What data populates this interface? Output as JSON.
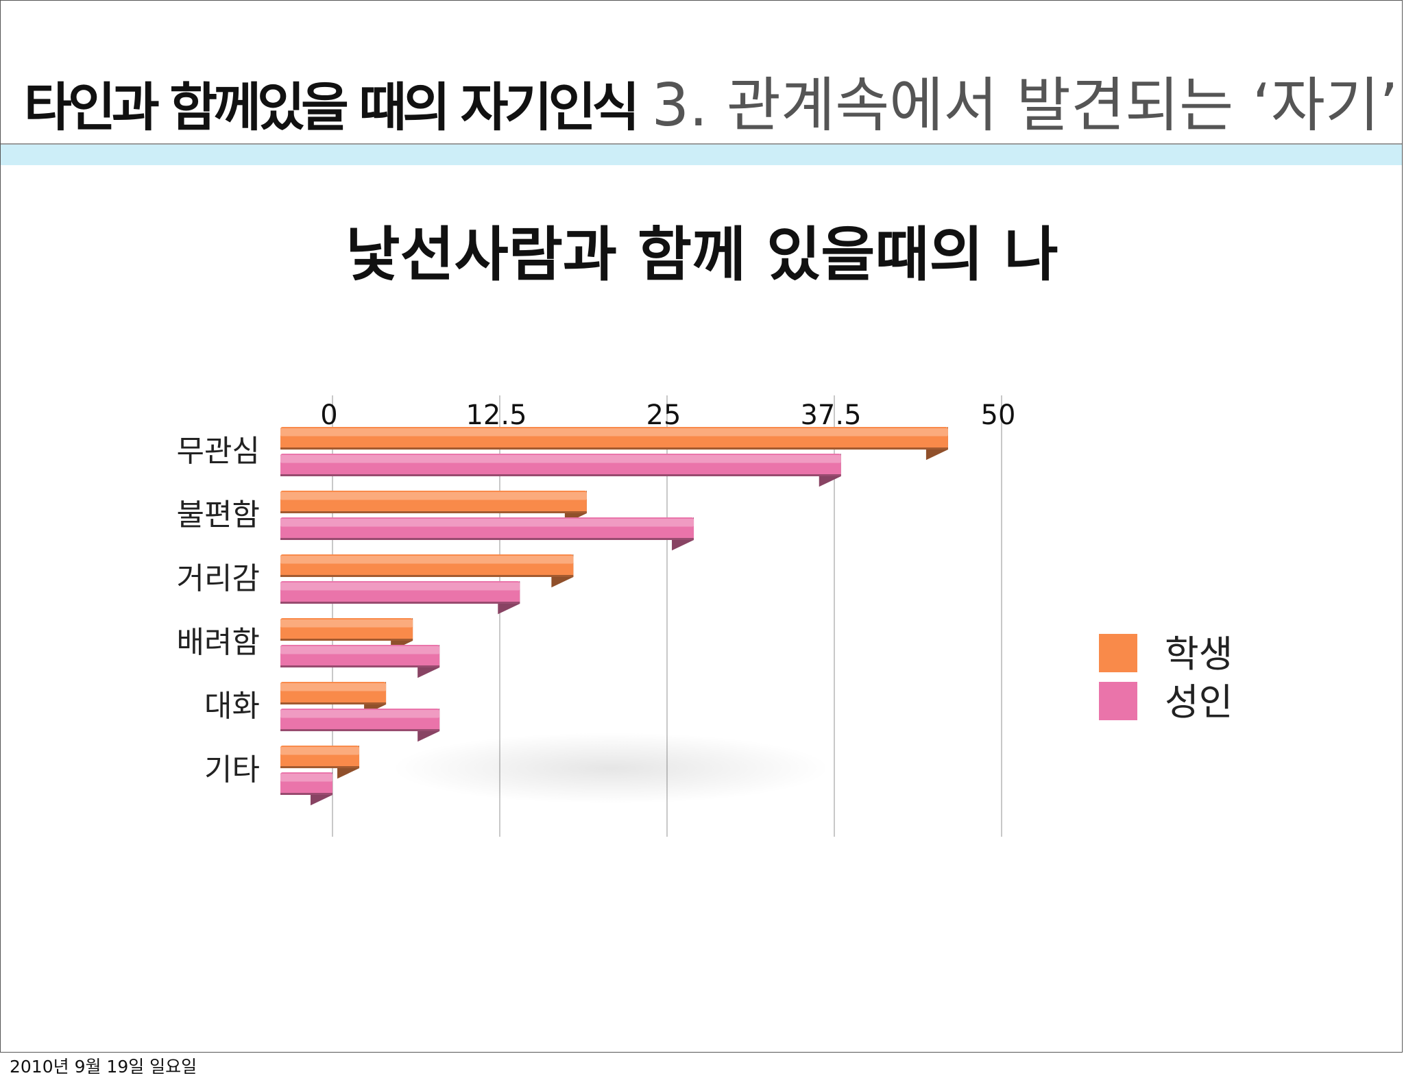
{
  "header": {
    "title_left": "타인과 함께있을 때의 자기인식",
    "title_right": "3. 관계속에서 발견되는 ‘자기’"
  },
  "footer": {
    "date": "2010년 9월 19일 일요일"
  },
  "colors": {
    "student": "#f98a4a",
    "adult": "#ea74aa",
    "header_band": "#cdeef8"
  },
  "chart_data": {
    "type": "bar",
    "orientation": "horizontal",
    "title": "낯선사람과 함께 있을때의 나",
    "categories": [
      "무관심",
      "불편함",
      "거리감",
      "배려함",
      "대화",
      "기타"
    ],
    "series": [
      {
        "name": "학생",
        "color": "#f98a4a",
        "values": [
          46,
          19,
          18,
          6,
          4,
          2
        ]
      },
      {
        "name": "성인",
        "color": "#ea74aa",
        "values": [
          38,
          27,
          14,
          8,
          8,
          0
        ]
      }
    ],
    "x_ticks": [
      "0",
      "12.5",
      "25",
      "37.5",
      "50"
    ],
    "xlim": [
      0,
      50
    ],
    "xlabel": "",
    "ylabel": "",
    "grid": "vertical",
    "axis_position": "top",
    "legend": "right"
  }
}
